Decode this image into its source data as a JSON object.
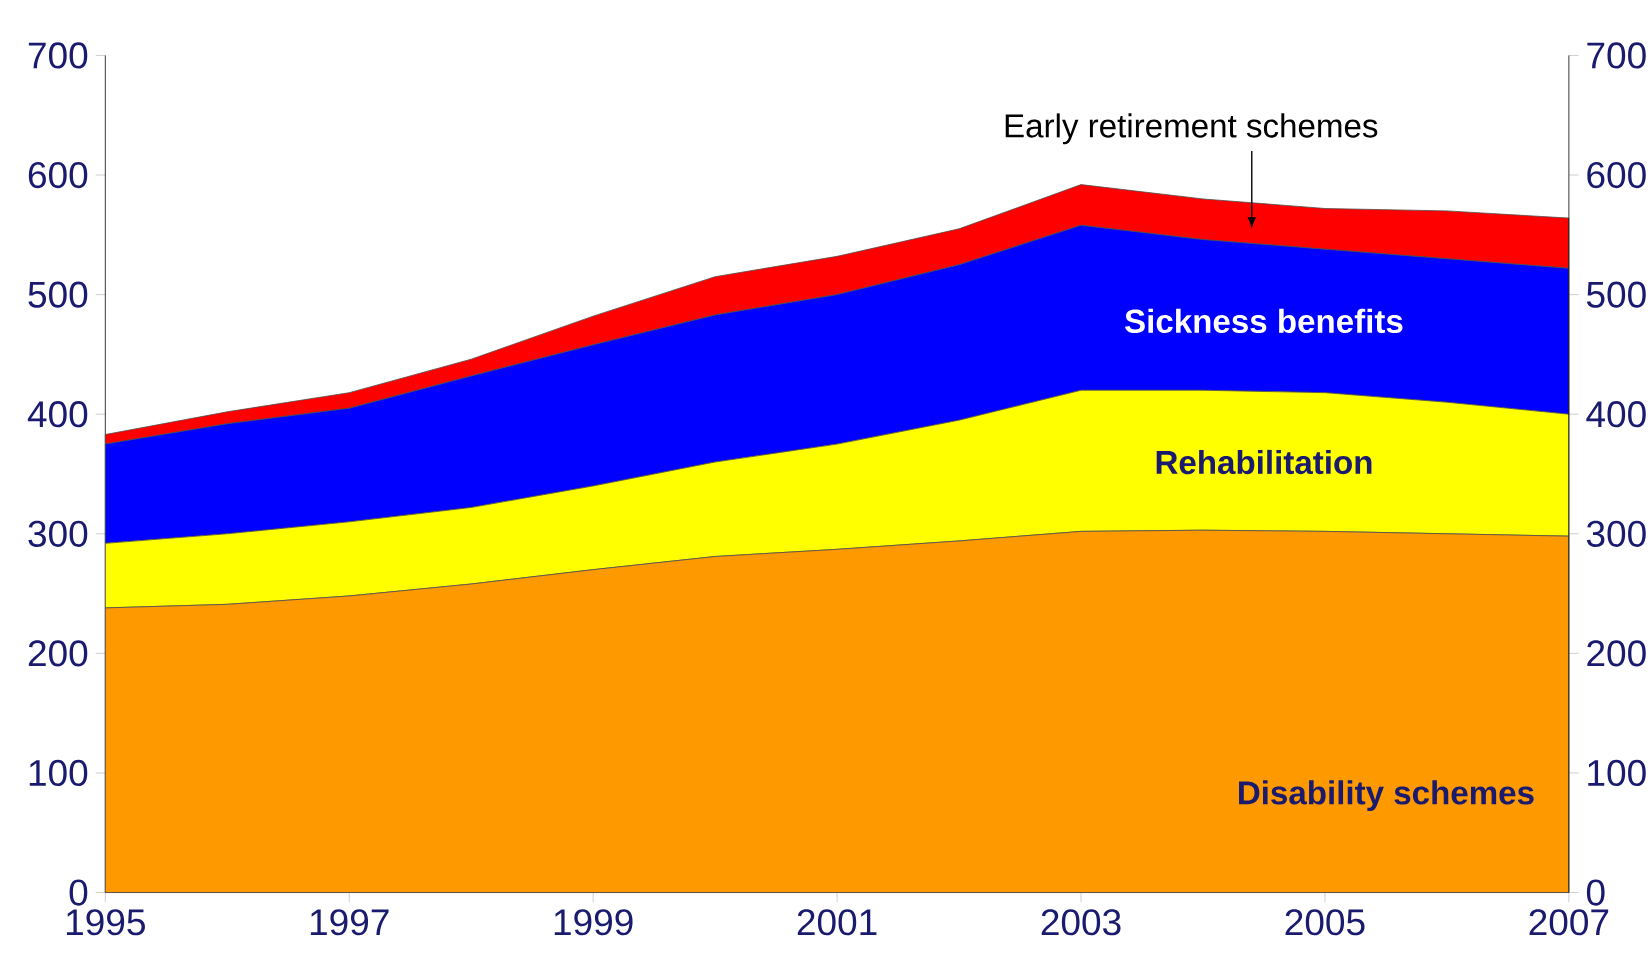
{
  "chart_data": {
    "type": "area",
    "stacked": true,
    "legend": false,
    "x": [
      1995,
      1996,
      1997,
      1998,
      1999,
      2000,
      2001,
      2002,
      2003,
      2004,
      2005,
      2006,
      2007
    ],
    "series": [
      {
        "name": "Disability schemes",
        "color": "#ff9900",
        "values": [
          238,
          241,
          248,
          258,
          270,
          281,
          287,
          294,
          302,
          303,
          302,
          300,
          298
        ]
      },
      {
        "name": "Rehabilitation",
        "color": "#ffff00",
        "values": [
          54,
          59,
          62,
          64,
          70,
          79,
          88,
          101,
          118,
          117,
          116,
          110,
          102
        ]
      },
      {
        "name": "Sickness benefits",
        "color": "#0000ff",
        "values": [
          83,
          92,
          95,
          110,
          118,
          123,
          125,
          130,
          138,
          126,
          120,
          120,
          122
        ]
      },
      {
        "name": "Early retirement schemes",
        "color": "#ff0000",
        "values": [
          8,
          10,
          13,
          14,
          24,
          32,
          32,
          30,
          34,
          34,
          34,
          40,
          42
        ]
      }
    ],
    "xlim": [
      1995,
      2007
    ],
    "xticks": [
      1995,
      1997,
      1999,
      2001,
      2003,
      2005,
      2007
    ],
    "ylim": [
      0,
      700
    ],
    "yticks": [
      0,
      100,
      200,
      300,
      400,
      500,
      600,
      700
    ],
    "y2lim": [
      0,
      700
    ],
    "y2ticks": [
      0,
      100,
      200,
      300,
      400,
      500,
      600,
      700
    ]
  }
}
